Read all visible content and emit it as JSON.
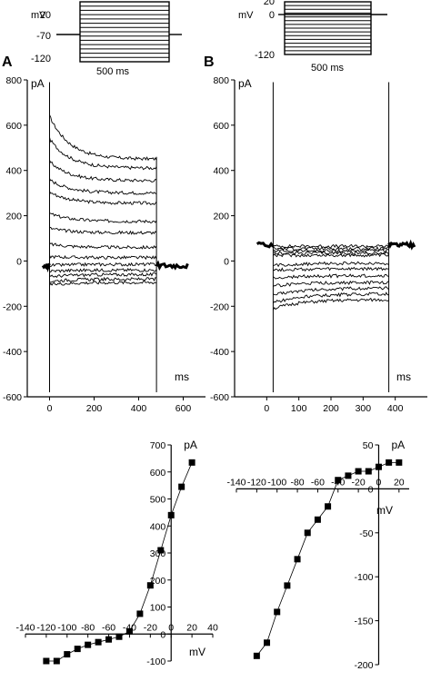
{
  "chart_data": [
    {
      "type": "line",
      "panel_label": "A",
      "ylabel": "pA",
      "xlabel": "ms",
      "xlim": [
        -100,
        700
      ],
      "ylim": [
        -600,
        800
      ],
      "xticks": [
        0,
        200,
        400,
        600
      ],
      "yticks": [
        -600,
        -400,
        -200,
        0,
        200,
        400,
        600,
        800
      ],
      "pulse": {
        "start": 0,
        "end": 480
      },
      "traces": [
        {
          "peak": 640,
          "steady": 450
        },
        {
          "peak": 540,
          "steady": 410
        },
        {
          "peak": 440,
          "steady": 355
        },
        {
          "peak": 360,
          "steady": 300
        },
        {
          "peak": 305,
          "steady": 255
        },
        {
          "peak": 210,
          "steady": 175
        },
        {
          "peak": 145,
          "steady": 125
        },
        {
          "peak": 75,
          "steady": 60
        },
        {
          "peak": 20,
          "steady": 15
        },
        {
          "peak": -20,
          "steady": -15
        },
        {
          "peak": -45,
          "steady": -40
        },
        {
          "peak": -70,
          "steady": -60
        },
        {
          "peak": -90,
          "steady": -80
        },
        {
          "peak": -105,
          "steady": -95
        }
      ],
      "holding_current": -20
    },
    {
      "type": "line",
      "panel_label": "B",
      "ylabel": "pA",
      "xlabel": "ms",
      "xlim": [
        -100,
        500
      ],
      "ylim": [
        -600,
        800
      ],
      "xticks": [
        0,
        100,
        200,
        300,
        400
      ],
      "yticks": [
        -600,
        -400,
        -200,
        0,
        200,
        400,
        600,
        800
      ],
      "pulse": {
        "start": 20,
        "end": 380
      },
      "traces": [
        {
          "peak": 65,
          "steady": 65
        },
        {
          "peak": 55,
          "steady": 55
        },
        {
          "peak": 45,
          "steady": 45
        },
        {
          "peak": 35,
          "steady": 35
        },
        {
          "peak": 25,
          "steady": 25
        },
        {
          "peak": -20,
          "steady": -10
        },
        {
          "peak": -40,
          "steady": -35
        },
        {
          "peak": -75,
          "steady": -65
        },
        {
          "peak": -110,
          "steady": -95
        },
        {
          "peak": -150,
          "steady": -120
        },
        {
          "peak": -185,
          "steady": -145
        },
        {
          "peak": -210,
          "steady": -170
        }
      ],
      "holding_current": 70
    },
    {
      "type": "scatter",
      "xlabel": "mV",
      "ylabel": "pA",
      "xlim": [
        -140,
        40
      ],
      "ylim": [
        -100,
        700
      ],
      "xticks": [
        -140,
        -120,
        -100,
        -80,
        -60,
        -40,
        -20,
        0,
        20,
        40
      ],
      "yticks": [
        -100,
        0,
        100,
        200,
        300,
        400,
        500,
        600,
        700
      ],
      "points": [
        {
          "x": -120,
          "y": -100
        },
        {
          "x": -110,
          "y": -100
        },
        {
          "x": -100,
          "y": -75
        },
        {
          "x": -90,
          "y": -55
        },
        {
          "x": -80,
          "y": -40
        },
        {
          "x": -70,
          "y": -30
        },
        {
          "x": -60,
          "y": -20
        },
        {
          "x": -50,
          "y": -10
        },
        {
          "x": -40,
          "y": 10
        },
        {
          "x": -30,
          "y": 75
        },
        {
          "x": -20,
          "y": 180
        },
        {
          "x": -10,
          "y": 310
        },
        {
          "x": 0,
          "y": 440
        },
        {
          "x": 10,
          "y": 545
        },
        {
          "x": 20,
          "y": 635
        }
      ]
    },
    {
      "type": "scatter",
      "xlabel": "mV",
      "ylabel": "pA",
      "xlim": [
        -140,
        30
      ],
      "ylim": [
        -200,
        50
      ],
      "xticks": [
        -140,
        -120,
        -100,
        -80,
        -60,
        -40,
        -20,
        0,
        20
      ],
      "yticks": [
        -200,
        -150,
        -100,
        -50,
        0,
        50
      ],
      "points": [
        {
          "x": -120,
          "y": -190
        },
        {
          "x": -110,
          "y": -175
        },
        {
          "x": -100,
          "y": -140
        },
        {
          "x": -90,
          "y": -110
        },
        {
          "x": -80,
          "y": -80
        },
        {
          "x": -70,
          "y": -50
        },
        {
          "x": -60,
          "y": -35
        },
        {
          "x": -50,
          "y": -20
        },
        {
          "x": -40,
          "y": 10
        },
        {
          "x": -30,
          "y": 15
        },
        {
          "x": -20,
          "y": 20
        },
        {
          "x": -10,
          "y": 20
        },
        {
          "x": 0,
          "y": 25
        },
        {
          "x": 10,
          "y": 30
        },
        {
          "x": 20,
          "y": 30
        }
      ]
    }
  ],
  "protocols": [
    {
      "unit": "mV",
      "labels": [
        "20",
        "-70",
        "-120"
      ],
      "duration": "500 ms",
      "steps": 15
    },
    {
      "unit": "mV",
      "labels": [
        "20",
        "0",
        "-120"
      ],
      "duration": "500 ms",
      "steps": 15
    }
  ],
  "colors": {
    "ink": "#000000",
    "background": "#ffffff"
  }
}
